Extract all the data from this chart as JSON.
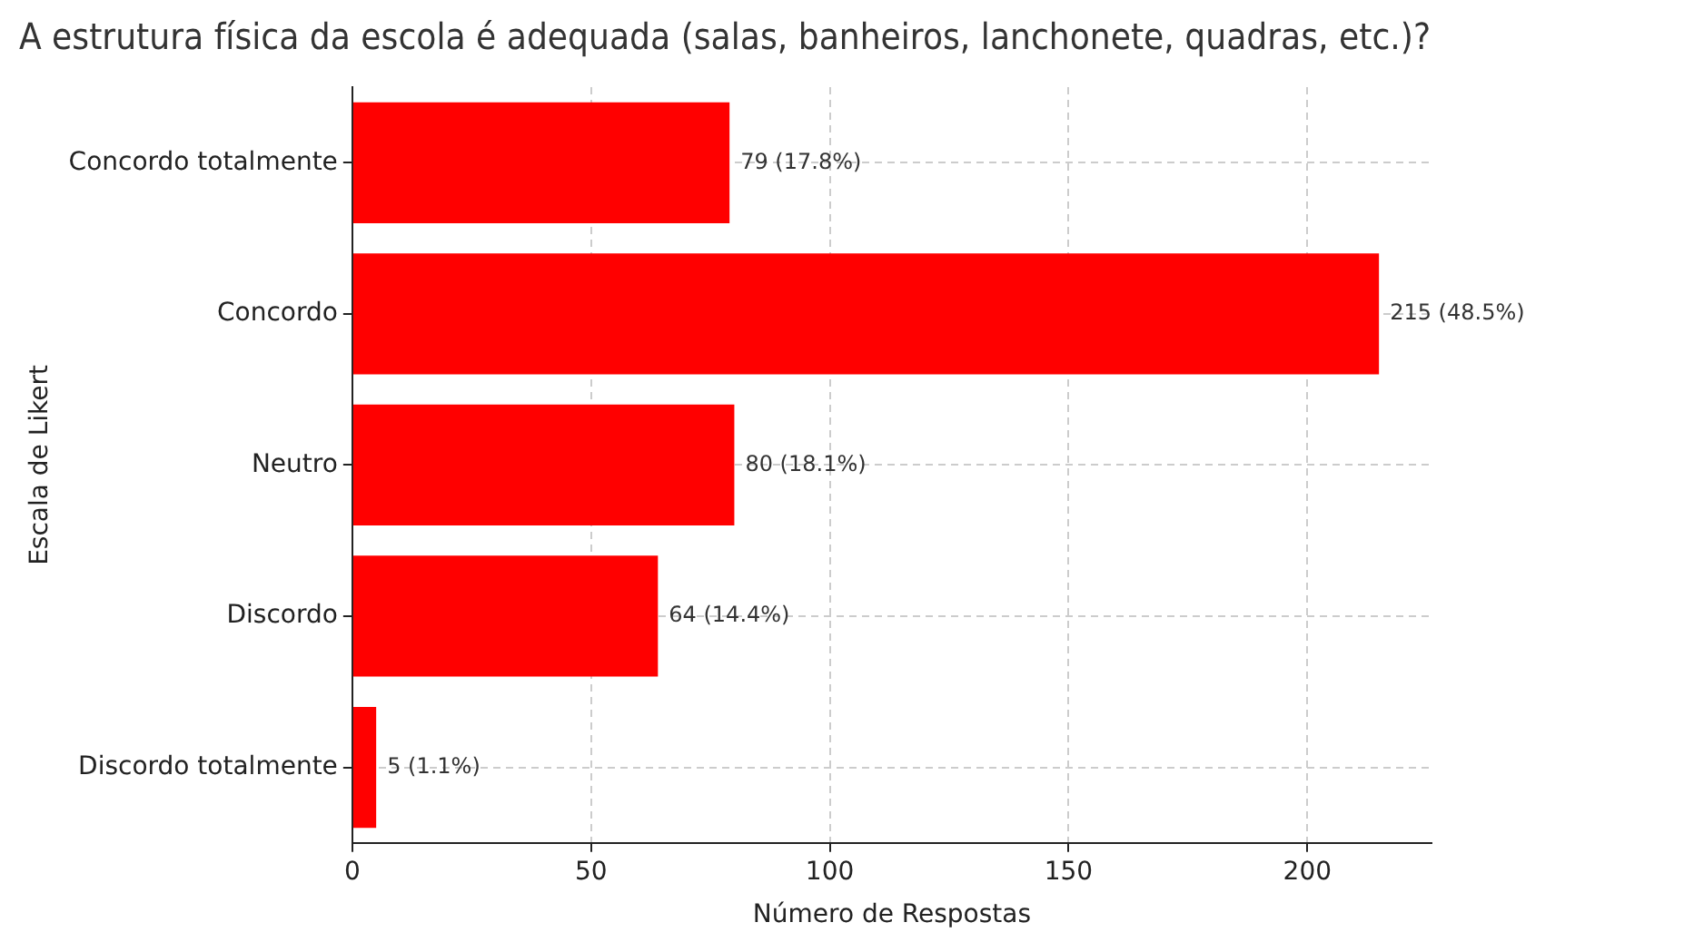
{
  "chart_data": {
    "type": "bar",
    "orientation": "horizontal",
    "title": "A estrutura física da escola é adequada (salas, banheiros, lanchonete, quadras, etc.)?",
    "xlabel": "Número de Respostas",
    "ylabel": "Escala de Likert",
    "categories": [
      "Concordo totalmente",
      "Concordo",
      "Neutro",
      "Discordo",
      "Discordo totalmente"
    ],
    "values": [
      79,
      215,
      80,
      64,
      5
    ],
    "color": "#ff0000",
    "value_labels": [
      "79 (17.8%)",
      "215 (48.5%)",
      "80 (18.1%)",
      "64 (14.4%)",
      "5 (1.1%)"
    ],
    "xlim": [
      0,
      226
    ],
    "xticks": [
      0,
      50,
      100,
      150,
      200
    ],
    "grid": true
  }
}
